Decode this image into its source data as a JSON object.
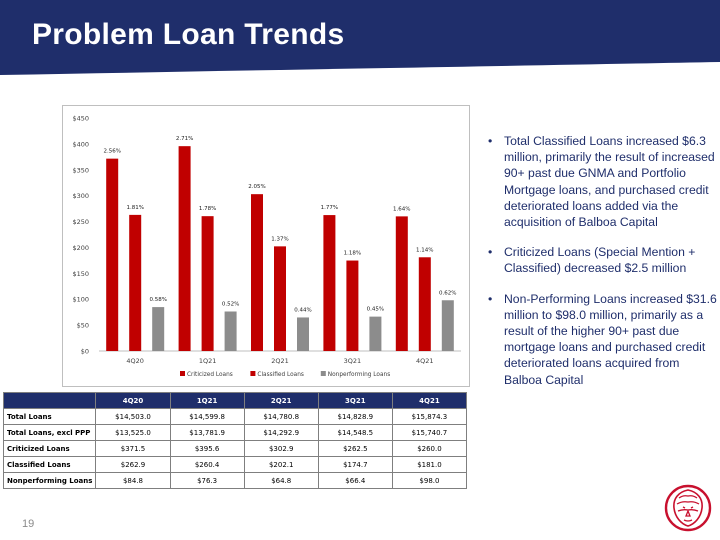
{
  "slide": {
    "title": "Problem Loan Trends",
    "page_number": "19",
    "colors": {
      "navy": "#1f2e6b",
      "criticized": "#c00000",
      "classified": "#c00000",
      "nonperforming": "#8c8c8c",
      "logo": "#c8102e"
    }
  },
  "bullets": [
    "Total Classified Loans increased $6.3 million, primarily the result of increased 90+ past due GNMA and Portfolio Mortgage loans, and purchased credit deteriorated loans added via the acquisition of Balboa Capital",
    "Criticized Loans (Special Mention + Classified) decreased $2.5 million",
    "Non-Performing Loans increased $31.6 million to $98.0 million, primarily as a result of the higher 90+ past due mortgage loans and purchased credit deteriorated loans acquired from Balboa Capital"
  ],
  "chart_data": {
    "type": "bar",
    "categories": [
      "4Q20",
      "1Q21",
      "2Q21",
      "3Q21",
      "4Q21"
    ],
    "ylim": [
      0,
      450
    ],
    "y_ticks": [
      "$0",
      "$50",
      "$100",
      "$150",
      "$200",
      "$250",
      "$300",
      "$350",
      "$400",
      "$450"
    ],
    "legend_position": "bottom",
    "grid": false,
    "series": [
      {
        "name": "Criticized Loans",
        "color": "#c00000",
        "values": [
          371.5,
          395.6,
          302.9,
          262.5,
          260.0
        ],
        "labels": [
          "2.56%",
          "2.71%",
          "2.05%",
          "1.77%",
          "1.64%"
        ]
      },
      {
        "name": "Classified Loans",
        "color": "#c00000",
        "values": [
          262.9,
          260.4,
          202.1,
          174.7,
          181.0
        ],
        "labels": [
          "1.81%",
          "1.78%",
          "1.37%",
          "1.18%",
          "1.14%"
        ]
      },
      {
        "name": "Nonperforming Loans",
        "color": "#8c8c8c",
        "values": [
          84.8,
          76.3,
          64.8,
          66.4,
          98.0
        ],
        "labels": [
          "0.58%",
          "0.52%",
          "0.44%",
          "0.45%",
          "0.62%"
        ]
      }
    ]
  },
  "table": {
    "headers": [
      "",
      "4Q20",
      "1Q21",
      "2Q21",
      "3Q21",
      "4Q21"
    ],
    "rows": [
      [
        "Total Loans",
        "$14,503.0",
        "$14,599.8",
        "$14,780.8",
        "$14,828.9",
        "$15,874.3"
      ],
      [
        "Total Loans, excl PPP",
        "$13,525.0",
        "$13,781.9",
        "$14,292.9",
        "$14,548.5",
        "$15,740.7"
      ],
      [
        "Criticized Loans",
        "$371.5",
        "$395.6",
        "$302.9",
        "$262.5",
        "$260.0"
      ],
      [
        "Classified Loans",
        "$262.9",
        "$260.4",
        "$202.1",
        "$174.7",
        "$181.0"
      ],
      [
        "Nonperforming Loans",
        "$84.8",
        "$76.3",
        "$64.8",
        "$66.4",
        "$98.0"
      ]
    ]
  }
}
